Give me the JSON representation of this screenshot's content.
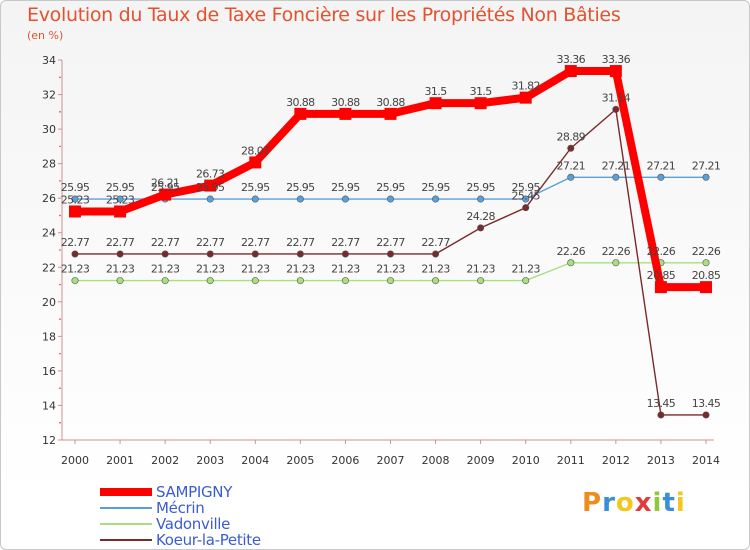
{
  "header": {
    "title": "Evolution du Taux de Taxe Foncière sur les Propriétés Non Bâties"
  },
  "chart_data": {
    "type": "line",
    "title": "Evolution du Taux de Taxe Foncière sur les Propriétés Non Bâties",
    "ylabel": "(en %)",
    "xlabel": "",
    "ylim": [
      12,
      34
    ],
    "yticks": [
      12,
      14,
      16,
      18,
      20,
      22,
      24,
      26,
      28,
      30,
      32,
      34
    ],
    "grid": false,
    "legend_position": "bottom-left",
    "x": [
      "2000",
      "2001",
      "2002",
      "2003",
      "2004",
      "2005",
      "2006",
      "2007",
      "2008",
      "2009",
      "2010",
      "2011",
      "2012",
      "2013",
      "2014"
    ],
    "series": [
      {
        "name": "SAMPIGNY",
        "color": "#ff0000",
        "values": [
          25.23,
          25.23,
          26.21,
          26.73,
          28.07,
          30.88,
          30.88,
          30.88,
          31.5,
          31.5,
          31.82,
          33.36,
          33.36,
          20.85,
          20.85
        ],
        "labels": [
          "25.23",
          "25.23",
          "26.21",
          "26.73",
          "28.07",
          "30.88",
          "30.88",
          "30.88",
          "31.5",
          "31.5",
          "31.82",
          "33.36",
          "33.36",
          "20.85",
          "20.85"
        ]
      },
      {
        "name": "Mécrin",
        "color": "#5aa0d8",
        "values": [
          25.95,
          25.95,
          25.95,
          25.95,
          25.95,
          25.95,
          25.95,
          25.95,
          25.95,
          25.95,
          25.95,
          27.21,
          27.21,
          27.21,
          27.21
        ],
        "labels": [
          "25.95",
          "25.95",
          "25.95",
          "25.95",
          "25.95",
          "25.95",
          "25.95",
          "25.95",
          "25.95",
          "25.95",
          "25.95",
          "27.21",
          "27.21",
          "27.21",
          "27.21"
        ]
      },
      {
        "name": "Vadonville",
        "color": "#a8e080",
        "values": [
          21.23,
          21.23,
          21.23,
          21.23,
          21.23,
          21.23,
          21.23,
          21.23,
          21.23,
          21.23,
          21.23,
          22.26,
          22.26,
          22.26,
          22.26
        ],
        "labels": [
          "21.23",
          "21.23",
          "21.23",
          "21.23",
          "21.23",
          "21.23",
          "21.23",
          "21.23",
          "21.23",
          "21.23",
          "21.23",
          "22.26",
          "22.26",
          "22.26",
          "22.26"
        ]
      },
      {
        "name": "Koeur-la-Petite",
        "color": "#7a2a2a",
        "values": [
          22.77,
          22.77,
          22.77,
          22.77,
          22.77,
          22.77,
          22.77,
          22.77,
          22.77,
          24.28,
          25.45,
          28.89,
          31.14,
          13.45,
          13.45
        ],
        "labels": [
          "22.77",
          "22.77",
          "22.77",
          "22.77",
          "22.77",
          "22.77",
          "22.77",
          "22.77",
          "22.77",
          "24.28",
          "25.45",
          "28.89",
          "31.14",
          "13.45",
          "13.45"
        ]
      }
    ]
  },
  "logo": {
    "letters": [
      "P",
      "r",
      "o",
      "x",
      "i",
      "t",
      "i"
    ],
    "colors": [
      "#f08c1e",
      "#3a8fd8",
      "#f0c81e",
      "#e03c3c",
      "#8fc83c",
      "#3a8fd8",
      "#f0c81e"
    ]
  }
}
